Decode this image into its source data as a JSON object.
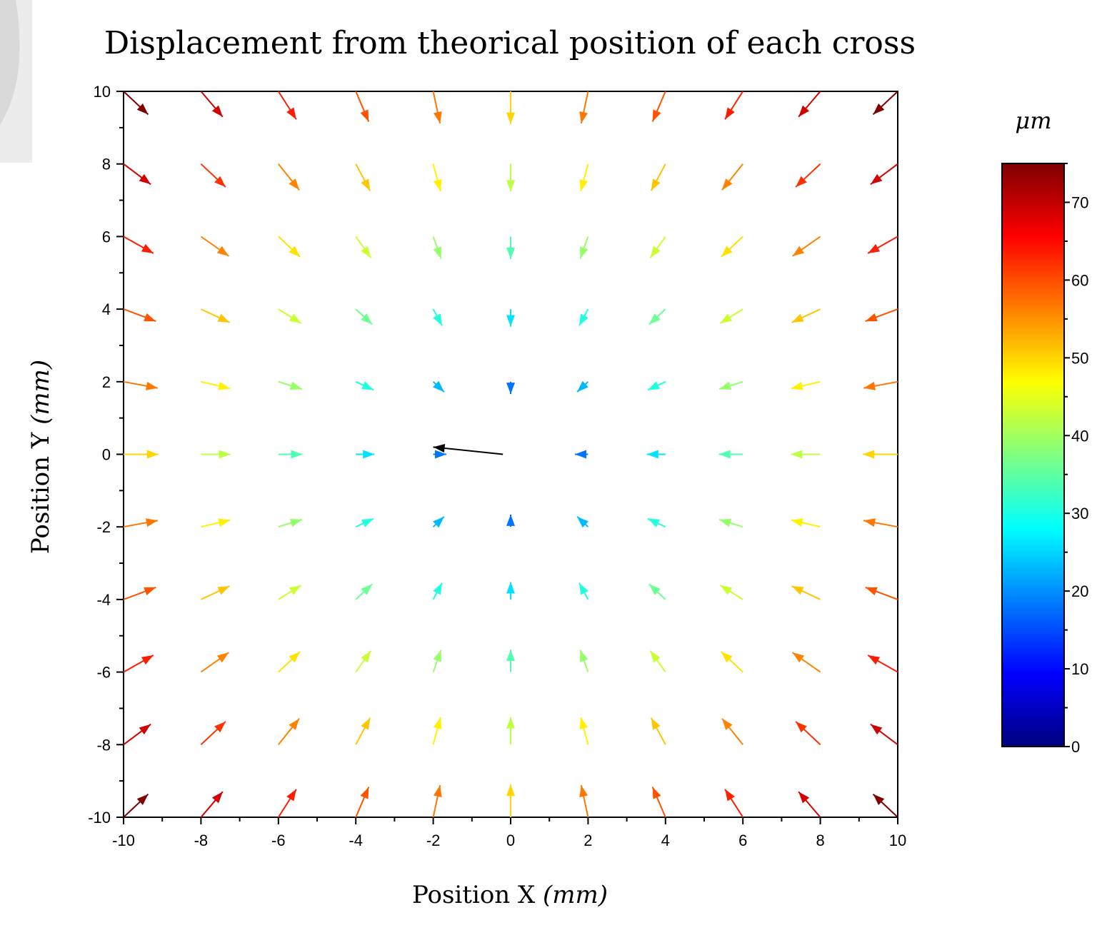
{
  "chart_data": {
    "type": "quiver",
    "title": "Displacement from theorical position of each cross",
    "xlabel": "Position X (mm)",
    "ylabel": "Position Y (mm)",
    "xlabel_parts": {
      "main": "Position X ",
      "unit": "(mm)"
    },
    "ylabel_parts": {
      "main": "Position Y ",
      "unit": "(mm)"
    },
    "xlim": [
      -10,
      10
    ],
    "ylim": [
      -10,
      10
    ],
    "xticks": [
      "-10",
      "-8",
      "-6",
      "-4",
      "-2",
      "0",
      "2",
      "4",
      "6",
      "8",
      "10"
    ],
    "yticks": [
      "10",
      "8",
      "6",
      "4",
      "2",
      "0",
      "-2",
      "-4",
      "-6",
      "-8",
      "-10"
    ],
    "grid": false,
    "grid_points": [
      -10,
      -8,
      -6,
      -4,
      -2,
      0,
      2,
      4,
      6,
      8,
      10
    ],
    "displacement": "arrows point toward the center (0,0); magnitude grows with radius",
    "outlier_arrow": {
      "x": -0.2,
      "y": 0,
      "u": -1.8,
      "v": 0.2,
      "color": "#000000"
    },
    "colorbar": {
      "label": "μm",
      "range": [
        0,
        75
      ],
      "ticks": [
        "0",
        "10",
        "20",
        "30",
        "40",
        "50",
        "60",
        "70"
      ],
      "colormap": "jet",
      "colors": [
        "#00007f",
        "#0000ff",
        "#007fff",
        "#00ffff",
        "#7fff7f",
        "#ffff00",
        "#ff7f00",
        "#ff0000",
        "#7f0000"
      ]
    }
  }
}
